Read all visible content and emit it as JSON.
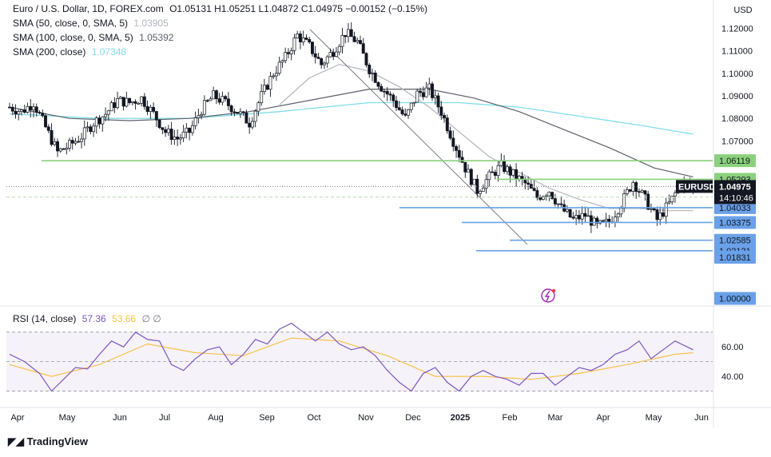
{
  "header": {
    "symbol": "Euro / U.S. Dollar, 1D, FOREX.com",
    "ohlc": "O1.05131  H1.05251  L1.04872  C1.04975  −0.00152 (−0.15%)",
    "sma50_label": "SMA (50, close, 0, SMA, 5)",
    "sma50_value": "1.03905",
    "sma100_label": "SMA (100, close, 0, SMA, 5)",
    "sma100_value": "1.05392",
    "sma200_label": "SMA (200, close)",
    "sma200_value": "1.07348"
  },
  "currency": "USD",
  "footer": {
    "brand": "TradingView"
  },
  "colors": {
    "sma50": "#b2b5be",
    "sma100": "#5d606b",
    "sma200": "#80deea",
    "up": "#ffffff",
    "down": "#131722",
    "rsi": "#7e57c2",
    "rsi_ma": "#f7c24a",
    "support_green": "#8bd17d",
    "support_blue": "#6aa1e8",
    "last_price": "#131722"
  },
  "chart_data": {
    "type": "candlestick",
    "price_axis": {
      "min": 1.0,
      "max": 1.125,
      "ticks": [
        "1.12000",
        "1.11000",
        "1.10000",
        "1.09000",
        "1.08000",
        "1.07000"
      ]
    },
    "x_labels": [
      "Apr",
      "May",
      "Jun",
      "Jul",
      "Aug",
      "Sep",
      "Oct",
      "Nov",
      "Dec",
      "2025",
      "Feb",
      "Mar",
      "Apr",
      "May",
      "Jun"
    ],
    "last_price": {
      "symbol": "EURUSD",
      "value": "1.04975",
      "countdown": "14:10:46"
    },
    "levels": [
      {
        "label": "1.06119",
        "value": 1.06119,
        "color": "green"
      },
      {
        "label": "1.05293",
        "value": 1.05293,
        "color": "green"
      },
      {
        "label": "1.04500",
        "value": 1.045,
        "color": "green"
      },
      {
        "label": "1.04033",
        "value": 1.04033,
        "color": "blue"
      },
      {
        "label": "1.03375",
        "value": 1.03375,
        "color": "blue"
      },
      {
        "label": "1.02585",
        "value": 1.02585,
        "color": "blue"
      },
      {
        "label": "1.02121",
        "value": 1.02121,
        "color": "blue"
      },
      {
        "label": "1.01831",
        "value": 1.01831,
        "color": "blue"
      },
      {
        "label": "1.00000",
        "value": 1.0,
        "color": "blue"
      }
    ],
    "price_path": [
      [
        0,
        1.085
      ],
      [
        4,
        1.083
      ],
      [
        8,
        1.087
      ],
      [
        12,
        1.076
      ],
      [
        16,
        1.065
      ],
      [
        20,
        1.068
      ],
      [
        24,
        1.072
      ],
      [
        28,
        1.078
      ],
      [
        32,
        1.082
      ],
      [
        36,
        1.088
      ],
      [
        40,
        1.087
      ],
      [
        44,
        1.089
      ],
      [
        48,
        1.082
      ],
      [
        52,
        1.074
      ],
      [
        56,
        1.071
      ],
      [
        60,
        1.074
      ],
      [
        64,
        1.084
      ],
      [
        68,
        1.09
      ],
      [
        72,
        1.087
      ],
      [
        76,
        1.083
      ],
      [
        80,
        1.078
      ],
      [
        84,
        1.09
      ],
      [
        88,
        1.1
      ],
      [
        92,
        1.107
      ],
      [
        96,
        1.117
      ],
      [
        100,
        1.112
      ],
      [
        104,
        1.104
      ],
      [
        108,
        1.11
      ],
      [
        112,
        1.118
      ],
      [
        116,
        1.114
      ],
      [
        120,
        1.102
      ],
      [
        124,
        1.094
      ],
      [
        128,
        1.088
      ],
      [
        132,
        1.08
      ],
      [
        136,
        1.091
      ],
      [
        140,
        1.093
      ],
      [
        144,
        1.083
      ],
      [
        148,
        1.07
      ],
      [
        152,
        1.058
      ],
      [
        156,
        1.048
      ],
      [
        160,
        1.054
      ],
      [
        164,
        1.059
      ],
      [
        168,
        1.055
      ],
      [
        172,
        1.051
      ],
      [
        176,
        1.045
      ],
      [
        180,
        1.048
      ],
      [
        184,
        1.04
      ],
      [
        188,
        1.035
      ],
      [
        192,
        1.037
      ],
      [
        196,
        1.032
      ],
      [
        200,
        1.034
      ],
      [
        204,
        1.042
      ],
      [
        208,
        1.052
      ],
      [
        212,
        1.044
      ],
      [
        216,
        1.035
      ],
      [
        220,
        1.042
      ],
      [
        224,
        1.051
      ],
      [
        228,
        1.049
      ]
    ],
    "sma50_path": [
      [
        90,
        1.086
      ],
      [
        100,
        1.098
      ],
      [
        110,
        1.104
      ],
      [
        120,
        1.101
      ],
      [
        130,
        1.094
      ],
      [
        140,
        1.085
      ],
      [
        150,
        1.074
      ],
      [
        160,
        1.063
      ],
      [
        170,
        1.056
      ],
      [
        180,
        1.049
      ],
      [
        190,
        1.044
      ],
      [
        200,
        1.04
      ],
      [
        210,
        1.04
      ],
      [
        220,
        1.039
      ],
      [
        228,
        1.039
      ]
    ],
    "sma100_path": [
      [
        0,
        1.085
      ],
      [
        20,
        1.08
      ],
      [
        40,
        1.079
      ],
      [
        60,
        1.08
      ],
      [
        80,
        1.083
      ],
      [
        100,
        1.088
      ],
      [
        120,
        1.093
      ],
      [
        140,
        1.093
      ],
      [
        155,
        1.089
      ],
      [
        170,
        1.083
      ],
      [
        185,
        1.075
      ],
      [
        200,
        1.067
      ],
      [
        215,
        1.058
      ],
      [
        228,
        1.054
      ]
    ],
    "sma200_path": [
      [
        0,
        1.082
      ],
      [
        30,
        1.08
      ],
      [
        60,
        1.08
      ],
      [
        90,
        1.083
      ],
      [
        120,
        1.087
      ],
      [
        150,
        1.087
      ],
      [
        170,
        1.085
      ],
      [
        190,
        1.081
      ],
      [
        210,
        1.077
      ],
      [
        228,
        1.073
      ]
    ],
    "rsi": {
      "label": "RSI (14, close)",
      "value": "57.36",
      "ma_value": "53.66",
      "extra": "∅ ∅",
      "ticks": [
        "60.00",
        "40.00"
      ],
      "upper": 70,
      "mid": 50,
      "lower": 30,
      "path": [
        [
          0,
          55
        ],
        [
          5,
          50
        ],
        [
          10,
          42
        ],
        [
          14,
          30
        ],
        [
          18,
          38
        ],
        [
          22,
          46
        ],
        [
          26,
          45
        ],
        [
          30,
          55
        ],
        [
          34,
          64
        ],
        [
          38,
          60
        ],
        [
          42,
          70
        ],
        [
          46,
          65
        ],
        [
          50,
          64
        ],
        [
          54,
          48
        ],
        [
          58,
          44
        ],
        [
          62,
          52
        ],
        [
          66,
          58
        ],
        [
          70,
          60
        ],
        [
          74,
          48
        ],
        [
          78,
          55
        ],
        [
          82,
          65
        ],
        [
          86,
          62
        ],
        [
          90,
          72
        ],
        [
          94,
          76
        ],
        [
          98,
          70
        ],
        [
          102,
          64
        ],
        [
          106,
          70
        ],
        [
          110,
          62
        ],
        [
          114,
          58
        ],
        [
          118,
          60
        ],
        [
          122,
          54
        ],
        [
          126,
          44
        ],
        [
          130,
          36
        ],
        [
          134,
          30
        ],
        [
          138,
          42
        ],
        [
          142,
          46
        ],
        [
          146,
          36
        ],
        [
          150,
          30
        ],
        [
          154,
          40
        ],
        [
          158,
          44
        ],
        [
          162,
          40
        ],
        [
          166,
          38
        ],
        [
          170,
          34
        ],
        [
          174,
          42
        ],
        [
          178,
          42
        ],
        [
          182,
          34
        ],
        [
          186,
          40
        ],
        [
          190,
          46
        ],
        [
          194,
          44
        ],
        [
          198,
          48
        ],
        [
          202,
          55
        ],
        [
          206,
          58
        ],
        [
          210,
          64
        ],
        [
          214,
          52
        ],
        [
          218,
          58
        ],
        [
          222,
          64
        ],
        [
          226,
          60
        ],
        [
          228,
          58
        ]
      ],
      "ma_path": [
        [
          0,
          48
        ],
        [
          14,
          40
        ],
        [
          30,
          48
        ],
        [
          46,
          62
        ],
        [
          62,
          56
        ],
        [
          78,
          54
        ],
        [
          94,
          66
        ],
        [
          110,
          64
        ],
        [
          126,
          54
        ],
        [
          142,
          40
        ],
        [
          158,
          40
        ],
        [
          174,
          38
        ],
        [
          190,
          42
        ],
        [
          206,
          48
        ],
        [
          222,
          55
        ],
        [
          228,
          56
        ]
      ]
    }
  }
}
